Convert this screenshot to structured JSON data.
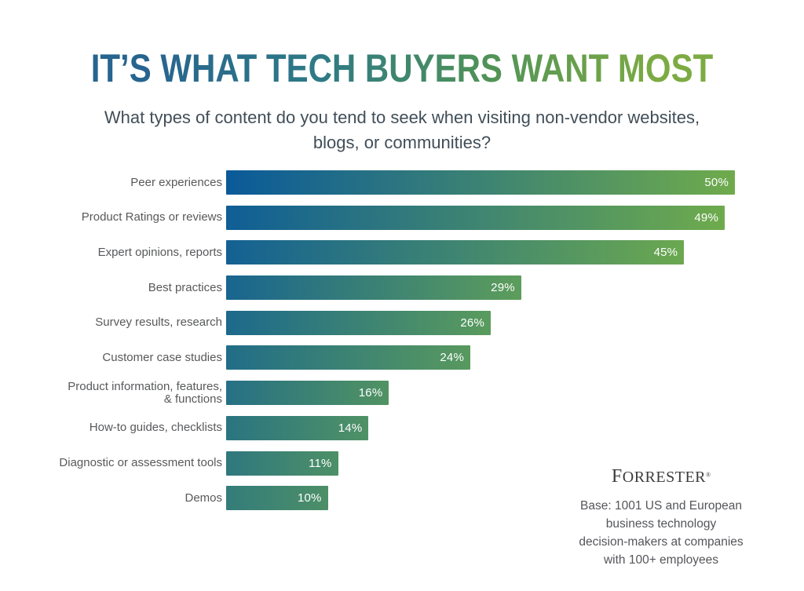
{
  "header": {
    "title": "IT’S WHAT TECH BUYERS WANT MOST",
    "subtitle": "What types of content do you tend to seek when visiting non-vendor websites,\nblogs, or communities?"
  },
  "chart_data": {
    "type": "bar",
    "orientation": "horizontal",
    "title": "IT’S WHAT TECH BUYERS WANT MOST",
    "subtitle": "What types of content do you tend to seek when visiting non-vendor websites, blogs, or communities?",
    "categories": [
      "Peer experiences",
      "Product Ratings or reviews",
      "Expert opinions, reports",
      "Best practices",
      "Survey results, research",
      "Customer case studies",
      "Product information, features,\n& functions",
      "How-to guides, checklists",
      "Diagnostic or assessment tools",
      "Demos"
    ],
    "values": [
      50,
      49,
      45,
      29,
      26,
      24,
      16,
      14,
      11,
      10
    ],
    "value_suffix": "%",
    "xlim": [
      0,
      50
    ],
    "grid": false,
    "legend": false,
    "value_labels": "inside-end, white",
    "bar_color_start": "#0a5a9a",
    "bar_color_end": "#72ae4a",
    "title_color_start": "#27648f",
    "title_color_end": "#7dab43"
  },
  "source": {
    "logo": "FORRESTER",
    "registered_mark": "®",
    "base_note": "Base: 1001 US and European\nbusiness technology\ndecision-makers at companies\nwith 100+ employees"
  }
}
